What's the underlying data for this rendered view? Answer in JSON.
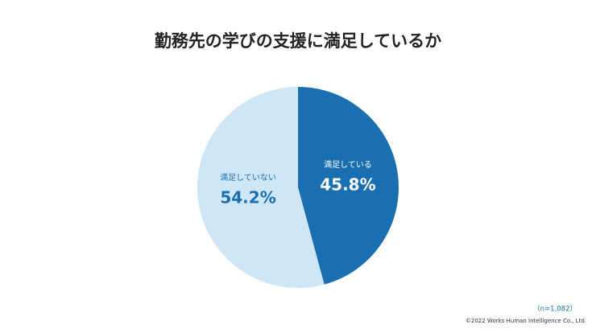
{
  "chart_data": {
    "type": "pie",
    "title": "勤務先の学びの支援に満足しているか",
    "categories": [
      "満足している",
      "満足していない"
    ],
    "values": [
      45.8,
      54.2
    ],
    "value_labels": [
      "45.8%",
      "54.2%"
    ],
    "colors": [
      "#1a6fb0",
      "#cfe6f6"
    ],
    "label_colors": [
      "#ffffff",
      "#1a6fb0"
    ],
    "annotations": [
      "（n=1,082）",
      "©2022 Works Human Intelligence Co., Ltd."
    ]
  }
}
